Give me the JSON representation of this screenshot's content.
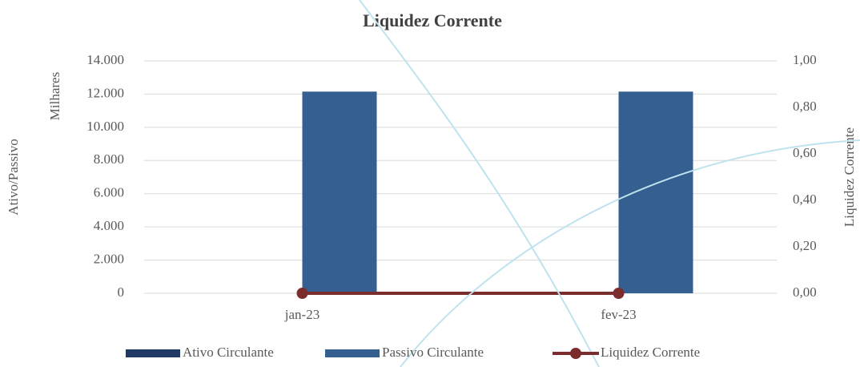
{
  "chart_data": {
    "type": "bar",
    "title": "Liquidez Corrente",
    "y_label": "Ativo/Passivo",
    "y_display_units": "Milhares",
    "y2_label": "Liquidez Corrente",
    "categories": [
      "jan-23",
      "fev-23"
    ],
    "series": [
      {
        "name": "Ativo Circulante",
        "type": "bar",
        "color": "#1f3864",
        "values": [
          0,
          0
        ]
      },
      {
        "name": "Passivo Circulante",
        "type": "bar",
        "color": "#355f91",
        "values": [
          12150,
          12150
        ]
      },
      {
        "name": "Liquidez Corrente",
        "type": "line",
        "axis": "y2",
        "color": "#7b2c2c",
        "values": [
          0,
          0
        ]
      }
    ],
    "ylim": [
      0,
      14000
    ],
    "yticks": [
      {
        "value": 0,
        "label": "0"
      },
      {
        "value": 2000,
        "label": "2.000"
      },
      {
        "value": 4000,
        "label": "4.000"
      },
      {
        "value": 6000,
        "label": "6.000"
      },
      {
        "value": 8000,
        "label": "8.000"
      },
      {
        "value": 10000,
        "label": "10.000"
      },
      {
        "value": 12000,
        "label": "12.000"
      },
      {
        "value": 14000,
        "label": "14.000"
      }
    ],
    "y2lim": [
      0,
      1
    ],
    "y2ticks": [
      {
        "value": 0,
        "label": "0,00"
      },
      {
        "value": 0.2,
        "label": "0,20"
      },
      {
        "value": 0.4,
        "label": "0,40"
      },
      {
        "value": 0.6,
        "label": "0,60"
      },
      {
        "value": 0.8,
        "label": "0,80"
      },
      {
        "value": 1,
        "label": "1,00"
      }
    ],
    "grid": true,
    "legend": "bottom"
  }
}
